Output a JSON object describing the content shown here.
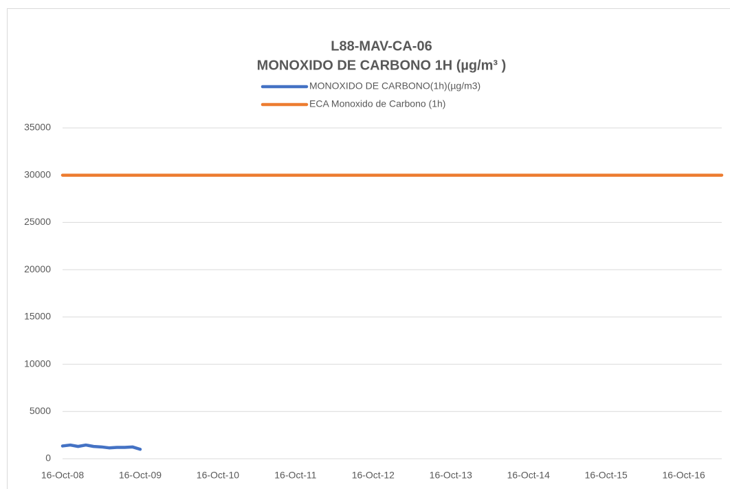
{
  "chart_data": {
    "type": "line",
    "title": "L88-MAV-CA-06",
    "subtitle": "MONOXIDO DE CARBONO 1H (µg/m³ )",
    "series": [
      {
        "name": "MONOXIDO DE CARBONO(1h)(µg/m3)",
        "color": "#4472c4",
        "x": [
          8,
          8.1,
          8.2,
          8.3,
          8.4,
          8.5,
          8.6,
          8.7,
          8.8,
          8.9,
          9.0
        ],
        "values": [
          1350,
          1450,
          1300,
          1450,
          1300,
          1250,
          1150,
          1200,
          1200,
          1250,
          1000
        ]
      },
      {
        "name": "ECA Monoxido de Carbono (1h)",
        "color": "#ed7d31",
        "x": [
          8,
          16.49
        ],
        "values": [
          30000,
          30000
        ]
      }
    ],
    "xlim": [
      8,
      16.49
    ],
    "xticks": [
      {
        "value": 8,
        "label": "16-Oct-08"
      },
      {
        "value": 9,
        "label": "16-Oct-09"
      },
      {
        "value": 10,
        "label": "16-Oct-10"
      },
      {
        "value": 11,
        "label": "16-Oct-11"
      },
      {
        "value": 12,
        "label": "16-Oct-12"
      },
      {
        "value": 13,
        "label": "16-Oct-13"
      },
      {
        "value": 14,
        "label": "16-Oct-14"
      },
      {
        "value": 15,
        "label": "16-Oct-15"
      },
      {
        "value": 16,
        "label": "16-Oct-16"
      }
    ],
    "ylim": [
      0,
      35000
    ],
    "yticks": [
      0,
      5000,
      10000,
      15000,
      20000,
      25000,
      30000,
      35000
    ],
    "grid": true,
    "legend": "top"
  }
}
